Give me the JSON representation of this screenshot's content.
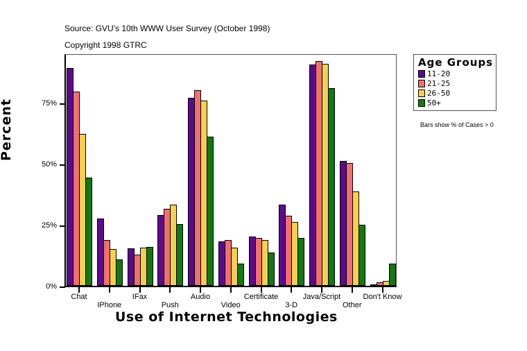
{
  "header": {
    "source": "Source: GVU's 10th WWW User Survey (October 1998)",
    "copyright": "Copyright 1998 GTRC"
  },
  "legend": {
    "title": "Age Groups",
    "items": [
      {
        "label": "11-20",
        "color": "#5c0a8c"
      },
      {
        "label": "21-25",
        "color": "#f07070"
      },
      {
        "label": "26-50",
        "color": "#f5d050"
      },
      {
        "label": "50+",
        "color": "#127812"
      }
    ]
  },
  "note": "Bars show % of Cases > 0",
  "axes": {
    "y_title": "Percent",
    "x_title": "Use of Internet Technologies",
    "y_ticks": [
      "0%",
      "25%",
      "50%",
      "75%"
    ]
  },
  "chart_data": {
    "type": "bar",
    "title": "",
    "subtitle": "Source: GVU's 10th WWW User Survey (October 1998)",
    "xlabel": "Use of Internet Technologies",
    "ylabel": "Percent",
    "ylim": [
      0,
      95
    ],
    "y_ticks": [
      0,
      25,
      50,
      75
    ],
    "grid": false,
    "legend_position": "right",
    "legend_title": "Age Groups",
    "annotation": "Bars show % of Cases > 0",
    "categories": [
      "Chat",
      "IPhone",
      "IFax",
      "Push",
      "Audio",
      "Video",
      "Certificate",
      "3-D",
      "Java/Script",
      "Other",
      "Don't Know"
    ],
    "series": [
      {
        "name": "11-20",
        "color": "#5c0a8c",
        "values": [
          89.2,
          27.6,
          15.3,
          29.0,
          77.0,
          18.2,
          20.2,
          33.2,
          90.6,
          51.1,
          0.5
        ]
      },
      {
        "name": "21-25",
        "color": "#f07070",
        "values": [
          79.5,
          18.8,
          12.8,
          31.5,
          80.1,
          18.8,
          19.6,
          28.7,
          92.0,
          50.3,
          1.4
        ]
      },
      {
        "name": "26-50",
        "color": "#f5d050",
        "values": [
          62.2,
          15.1,
          15.6,
          33.2,
          75.9,
          15.6,
          18.8,
          26.1,
          90.9,
          38.6,
          2.0
        ]
      },
      {
        "name": "50+",
        "color": "#127812",
        "values": [
          44.3,
          10.8,
          15.9,
          25.3,
          61.1,
          9.1,
          13.6,
          19.6,
          81.0,
          25.0,
          9.1
        ]
      }
    ]
  }
}
